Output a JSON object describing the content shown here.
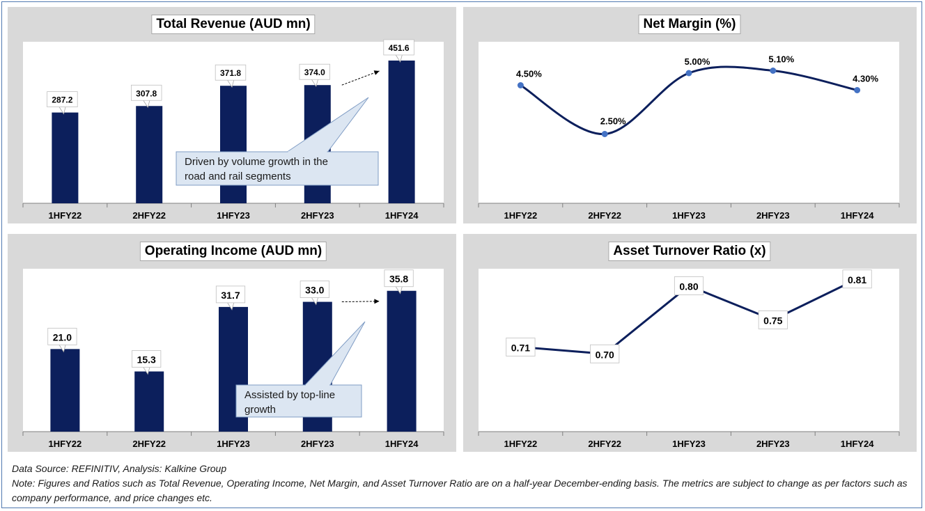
{
  "chart_data": [
    {
      "type": "bar",
      "title": "Total Revenue (AUD mn)",
      "categories": [
        "1HFY22",
        "2HFY22",
        "1HFY23",
        "2HFY23",
        "1HFY24"
      ],
      "values": [
        287.2,
        307.8,
        371.8,
        374.0,
        451.6
      ],
      "value_labels": [
        "287.2",
        "307.8",
        "371.8",
        "374.0",
        "451.6"
      ],
      "ylim": [
        0,
        500
      ],
      "color": "#0c1f5c",
      "callout": "Driven by volume growth in the road and rail segments"
    },
    {
      "type": "line",
      "title": "Net Margin (%)",
      "categories": [
        "1HFY22",
        "2HFY22",
        "1HFY23",
        "2HFY23",
        "1HFY24"
      ],
      "values": [
        4.5,
        2.5,
        5.0,
        5.1,
        4.3
      ],
      "value_labels": [
        "4.50%",
        "2.50%",
        "5.00%",
        "5.10%",
        "4.30%"
      ],
      "ylim": [
        0,
        6
      ],
      "smooth": true,
      "color": "#0c1f5c",
      "marker_color": "#4472c4"
    },
    {
      "type": "bar",
      "title": "Operating Income (AUD mn)",
      "categories": [
        "1HFY22",
        "2HFY22",
        "1HFY23",
        "2HFY23",
        "1HFY24"
      ],
      "values": [
        21.0,
        15.3,
        31.7,
        33.0,
        35.8
      ],
      "value_labels": [
        "21.0",
        "15.3",
        "31.7",
        "33.0",
        "35.8"
      ],
      "ylim": [
        0,
        40
      ],
      "color": "#0c1f5c",
      "callout": "Assisted by top-line growth"
    },
    {
      "type": "line",
      "title": "Asset Turnover Ratio (x)",
      "categories": [
        "1HFY22",
        "2HFY22",
        "1HFY23",
        "2HFY23",
        "1HFY24"
      ],
      "values": [
        0.71,
        0.7,
        0.8,
        0.75,
        0.81
      ],
      "value_labels": [
        "0.71",
        "0.70",
        "0.80",
        "0.75",
        "0.81"
      ],
      "ylim": [
        0.6,
        0.82
      ],
      "smooth": false,
      "color": "#0c1f5c"
    }
  ],
  "footer": {
    "source": "Data Source: REFINITIV, Analysis: Kalkine Group",
    "note": "Note: Figures and Ratios such as Total Revenue, Operating Income, Net Margin, and Asset Turnover Ratio are on a half-year December-ending basis. The metrics are subject to change as per factors such as company performance, and price changes etc."
  }
}
